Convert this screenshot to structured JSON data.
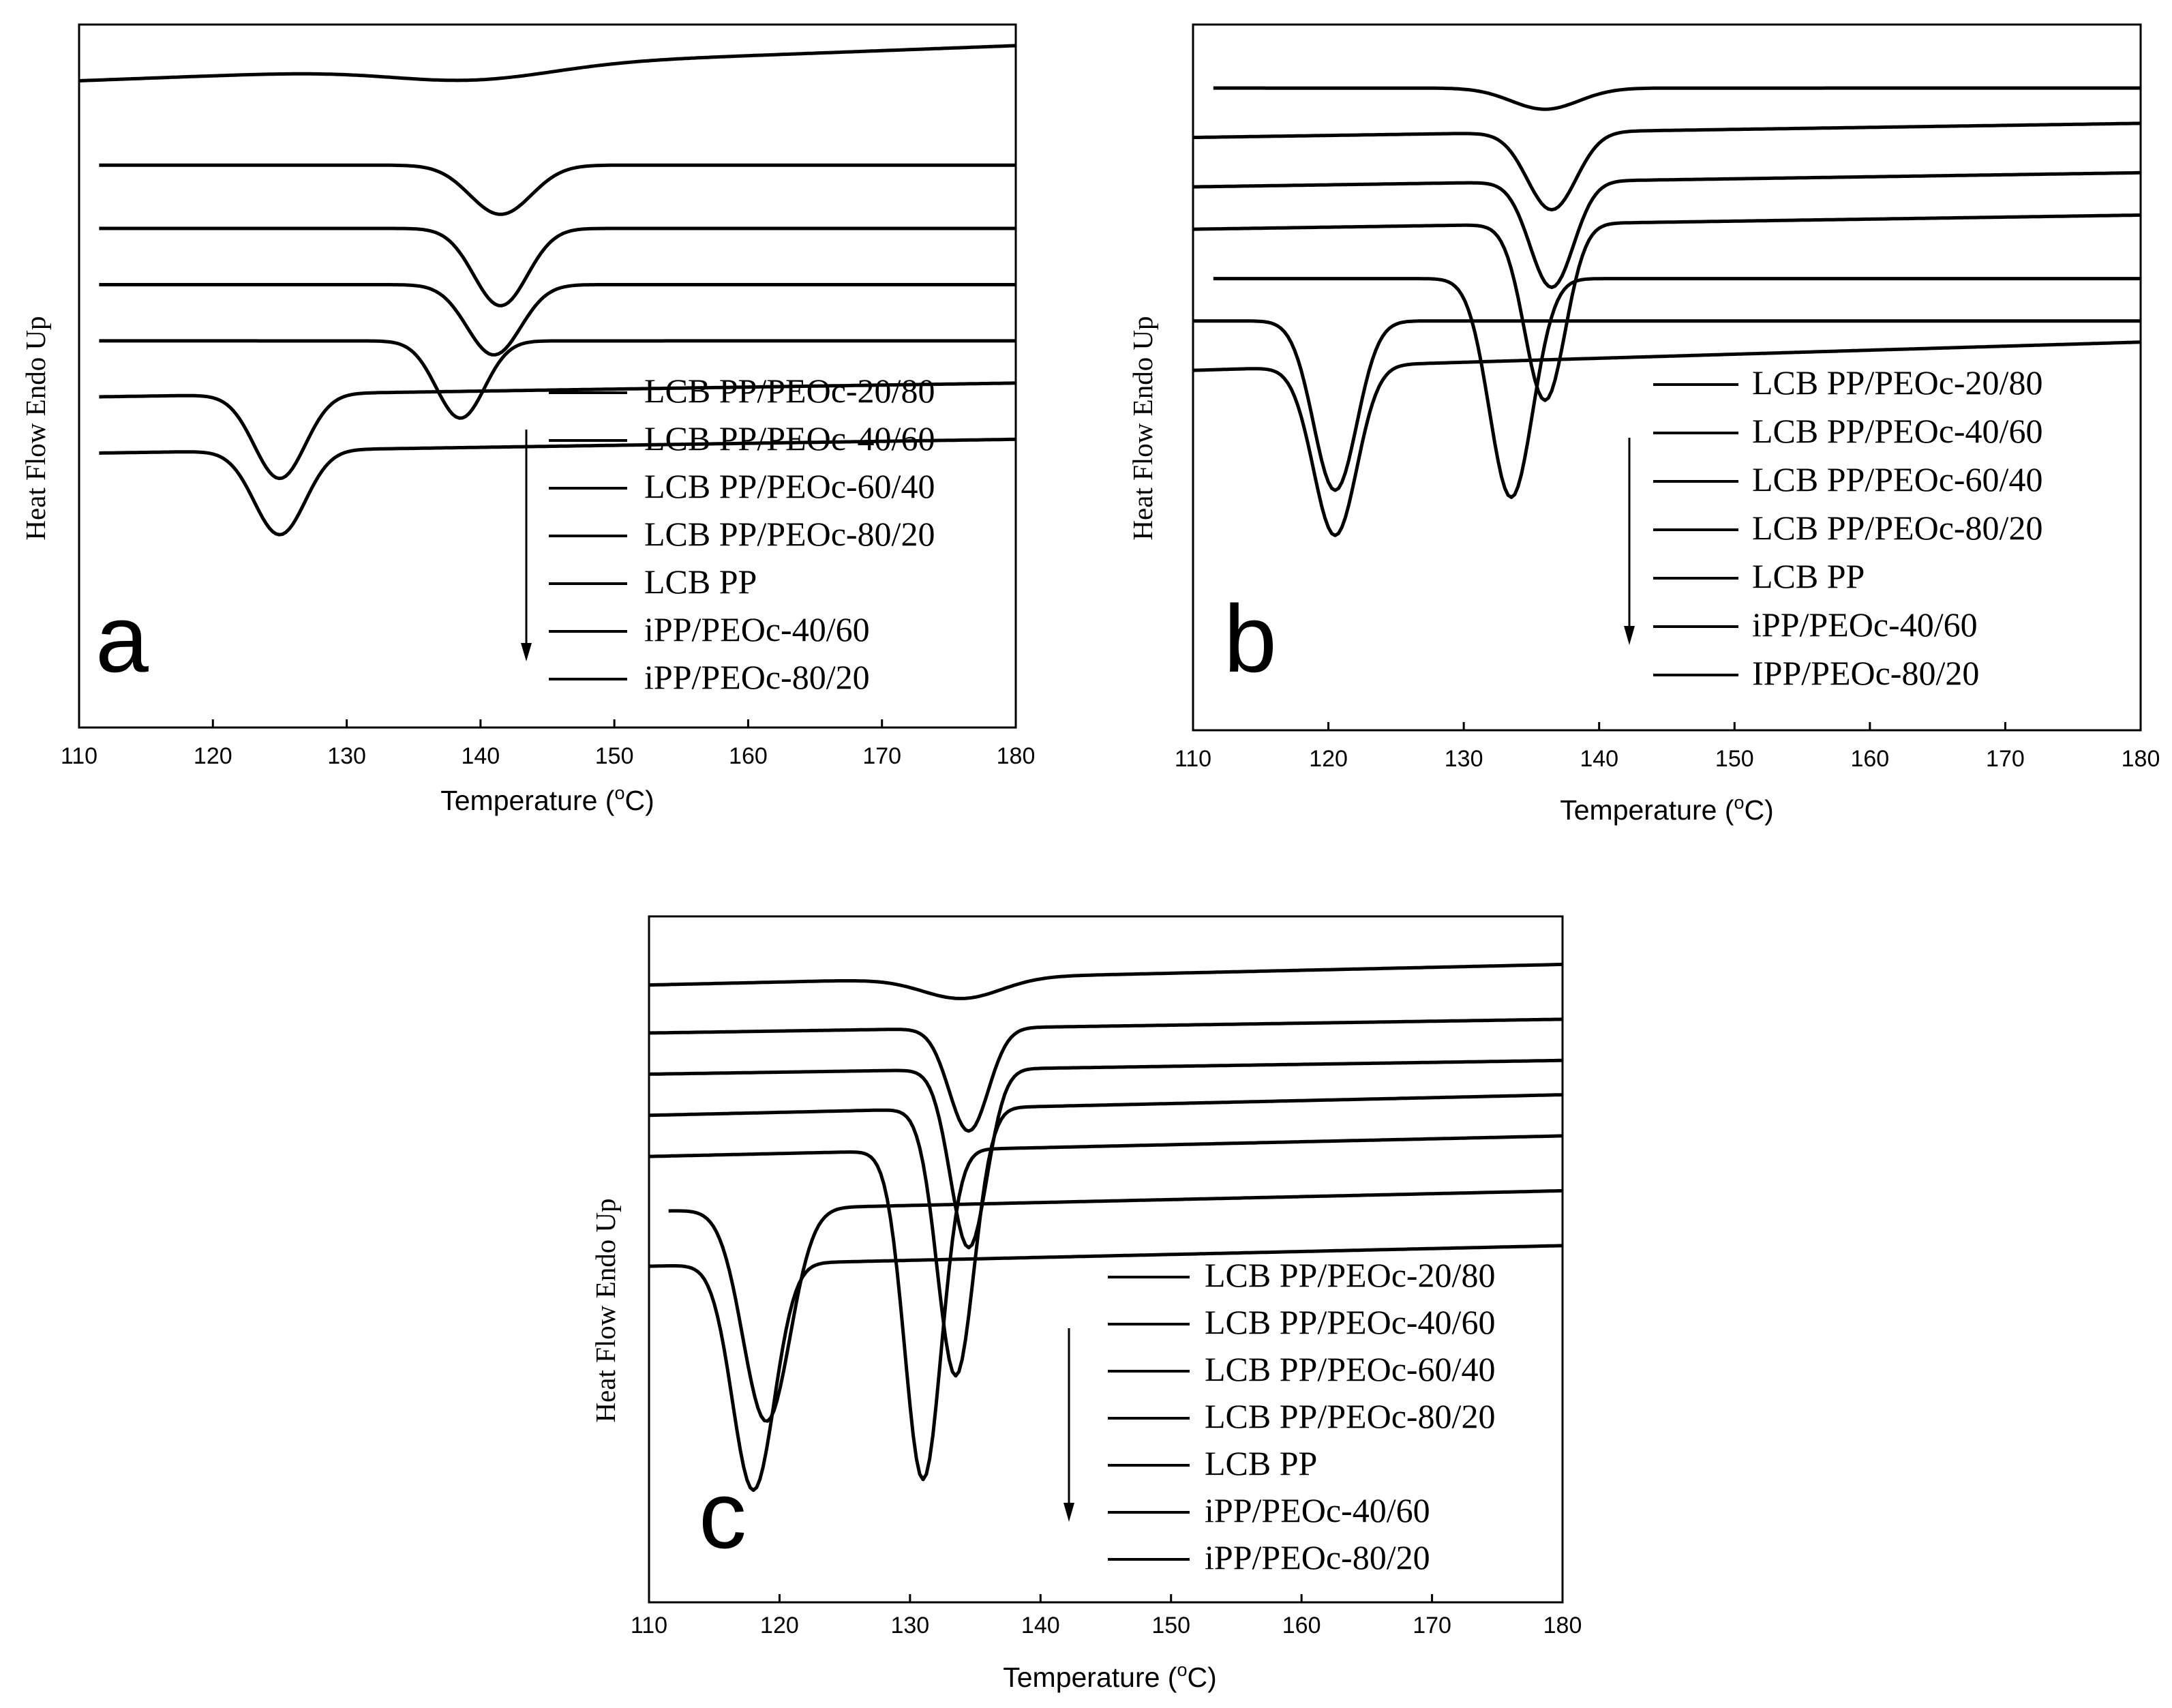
{
  "chart_data": [
    {
      "type": "line",
      "panel_label": "a",
      "xlabel": "Temperature (",
      "xlabel_deg": "o",
      "xlabel_unit": "C)",
      "ylabel": "Heat Flow Endo Up",
      "xlim": [
        110,
        180
      ],
      "xticks": [
        "110",
        "120",
        "130",
        "140",
        "150",
        "160",
        "170",
        "180"
      ],
      "legend_placement": "bottom-right",
      "legend": [
        "LCB PP/PEOc-20/80",
        "LCB PP/PEOc-40/60",
        "LCB PP/PEOc-60/40",
        "LCB PP/PEOc-80/20",
        "LCB PP",
        "iPP/PEOc-40/60",
        "iPP/PEOc-80/20"
      ],
      "series": [
        {
          "name": "LCB PP/PEOc-20/80",
          "x_start": 110,
          "baseline": 0.92,
          "slope": 0.05,
          "peak_x": 139.5,
          "depth": 0.02,
          "width": 6.0
        },
        {
          "name": "LCB PP/PEOc-40/60",
          "x_start": 111.5,
          "baseline": 0.8,
          "slope": 0.0,
          "peak_x": 141.5,
          "depth": 0.07,
          "width": 2.3
        },
        {
          "name": "LCB PP/PEOc-60/40",
          "x_start": 111.5,
          "baseline": 0.71,
          "slope": 0.0,
          "peak_x": 141.5,
          "depth": 0.11,
          "width": 2.0
        },
        {
          "name": "LCB PP/PEOc-80/20",
          "x_start": 111.5,
          "baseline": 0.63,
          "slope": 0.0,
          "peak_x": 141.0,
          "depth": 0.1,
          "width": 2.0
        },
        {
          "name": "LCB PP",
          "x_start": 111.5,
          "baseline": 0.55,
          "slope": 0.0,
          "peak_x": 138.5,
          "depth": 0.11,
          "width": 1.8
        },
        {
          "name": "iPP/PEOc-40/60",
          "x_start": 111.5,
          "baseline": 0.47,
          "slope": 0.02,
          "peak_x": 125.0,
          "depth": 0.12,
          "width": 1.9
        },
        {
          "name": "iPP/PEOc-80/20",
          "x_start": 111.5,
          "baseline": 0.39,
          "slope": 0.02,
          "peak_x": 125.0,
          "depth": 0.12,
          "width": 1.9
        }
      ]
    },
    {
      "type": "line",
      "panel_label": "b",
      "xlabel": "Temperature (",
      "xlabel_deg": "o",
      "xlabel_unit": "C)",
      "ylabel": "Heat Flow Endo Up",
      "xlim": [
        110,
        180
      ],
      "xticks": [
        "110",
        "120",
        "130",
        "140",
        "150",
        "160",
        "170",
        "180"
      ],
      "legend_placement": "bottom-right",
      "legend": [
        "LCB PP/PEOc-20/80",
        "LCB PP/PEOc-40/60",
        "LCB PP/PEOc-60/40",
        "LCB PP/PEOc-80/20",
        "LCB PP",
        "iPP/PEOc-40/60",
        "IPP/PEOc-80/20"
      ],
      "series": [
        {
          "name": "LCB PP/PEOc-20/80",
          "x_start": 111.5,
          "baseline": 0.91,
          "slope": 0.0,
          "peak_x": 136.0,
          "depth": 0.03,
          "width": 2.5
        },
        {
          "name": "LCB PP/PEOc-40/60",
          "x_start": 110,
          "baseline": 0.84,
          "slope": 0.02,
          "peak_x": 136.5,
          "depth": 0.11,
          "width": 1.8
        },
        {
          "name": "LCB PP/PEOc-60/40",
          "x_start": 110,
          "baseline": 0.77,
          "slope": 0.02,
          "peak_x": 136.5,
          "depth": 0.15,
          "width": 1.6
        },
        {
          "name": "LCB PP/PEOc-80/20",
          "x_start": 110,
          "baseline": 0.71,
          "slope": 0.02,
          "peak_x": 136.0,
          "depth": 0.25,
          "width": 1.5
        },
        {
          "name": "LCB PP",
          "x_start": 111.5,
          "baseline": 0.64,
          "slope": 0.0,
          "peak_x": 133.5,
          "depth": 0.31,
          "width": 1.6
        },
        {
          "name": "iPP/PEOc-40/60",
          "x_start": 110,
          "baseline": 0.58,
          "slope": 0.0,
          "peak_x": 120.5,
          "depth": 0.24,
          "width": 1.6
        },
        {
          "name": "IPP/PEOc-80/20",
          "x_start": 110,
          "baseline": 0.51,
          "slope": 0.04,
          "peak_x": 120.5,
          "depth": 0.24,
          "width": 1.6
        }
      ]
    },
    {
      "type": "line",
      "panel_label": "c",
      "xlabel": "Temperature (",
      "xlabel_deg": "o",
      "xlabel_unit": "C)",
      "ylabel": "Heat Flow Endo Up",
      "xlim": [
        110,
        180
      ],
      "xticks": [
        "110",
        "120",
        "130",
        "140",
        "150",
        "160",
        "170",
        "180"
      ],
      "legend_placement": "bottom-right",
      "legend": [
        "LCB PP/PEOc-20/80",
        "LCB PP/PEOc-40/60",
        "LCB PP/PEOc-60/40",
        "LCB PP/PEOc-80/20",
        "LCB PP",
        "iPP/PEOc-40/60",
        "iPP/PEOc-80/20"
      ],
      "series": [
        {
          "name": "LCB PP/PEOc-20/80",
          "x_start": 110,
          "baseline": 0.9,
          "slope": 0.03,
          "peak_x": 134.0,
          "depth": 0.03,
          "width": 3.0
        },
        {
          "name": "LCB PP/PEOc-40/60",
          "x_start": 110,
          "baseline": 0.83,
          "slope": 0.02,
          "peak_x": 134.5,
          "depth": 0.15,
          "width": 1.5
        },
        {
          "name": "LCB PP/PEOc-60/40",
          "x_start": 110,
          "baseline": 0.77,
          "slope": 0.02,
          "peak_x": 134.5,
          "depth": 0.26,
          "width": 1.4
        },
        {
          "name": "LCB PP/PEOc-80/20",
          "x_start": 110,
          "baseline": 0.71,
          "slope": 0.03,
          "peak_x": 133.5,
          "depth": 0.39,
          "width": 1.4
        },
        {
          "name": "LCB PP",
          "x_start": 110,
          "baseline": 0.65,
          "slope": 0.03,
          "peak_x": 131.0,
          "depth": 0.48,
          "width": 1.4
        },
        {
          "name": "iPP/PEOc-40/60",
          "x_start": 111.5,
          "baseline": 0.57,
          "slope": 0.03,
          "peak_x": 119.0,
          "depth": 0.31,
          "width": 1.8
        },
        {
          "name": "iPP/PEOc-80/20",
          "x_start": 110,
          "baseline": 0.49,
          "slope": 0.03,
          "peak_x": 118.0,
          "depth": 0.33,
          "width": 1.6
        }
      ]
    }
  ]
}
